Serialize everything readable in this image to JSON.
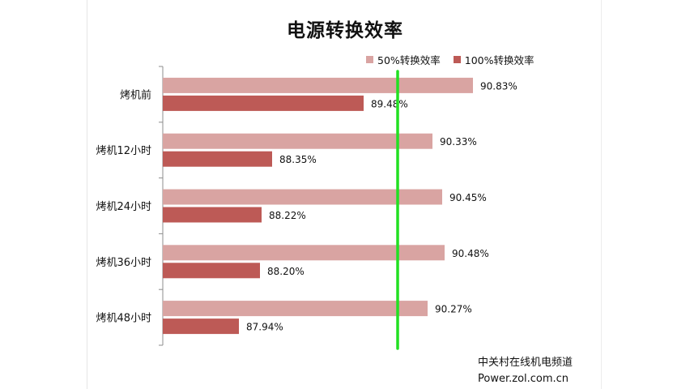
{
  "chart_data": {
    "type": "bar",
    "orientation": "horizontal",
    "title": "电源转换效率",
    "categories": [
      "烤机前",
      "烤机12小时",
      "烤机24小时",
      "烤机36小时",
      "烤机48小时"
    ],
    "series": [
      {
        "name": "50%转换效率",
        "values": [
          90.83,
          90.33,
          90.45,
          90.48,
          90.27
        ],
        "labels": [
          "90.83%",
          "90.33%",
          "90.45%",
          "90.48%",
          "90.27%"
        ],
        "color": "#d9a4a2"
      },
      {
        "name": "100%转换效率",
        "values": [
          89.48,
          88.35,
          88.22,
          88.2,
          87.94
        ],
        "labels": [
          "89.48%",
          "88.35%",
          "88.22%",
          "88.20%",
          "87.94%"
        ],
        "color": "#bd5a56"
      }
    ],
    "xlim": [
      87.0,
      91.0
    ],
    "reference_line": {
      "value": 89.9,
      "color": "#22e022"
    },
    "grid": false,
    "legend_position": "top-right"
  },
  "watermark": {
    "line1": "中关村在线机电频道",
    "line2": "Power.zol.com.cn"
  }
}
